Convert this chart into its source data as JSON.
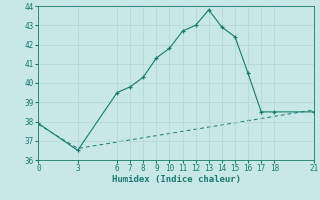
{
  "xlabel": "Humidex (Indice chaleur)",
  "line1_x": [
    0,
    3,
    6,
    7,
    8,
    9,
    10,
    11,
    12,
    13,
    14,
    15,
    16,
    17,
    18,
    21
  ],
  "line1_y": [
    37.9,
    36.5,
    39.5,
    39.8,
    40.3,
    41.3,
    41.8,
    42.7,
    43.0,
    43.8,
    42.9,
    42.4,
    40.5,
    38.5,
    38.5,
    38.5
  ],
  "line2_x": [
    0,
    3,
    21
  ],
  "line2_y": [
    37.85,
    36.6,
    38.6
  ],
  "line_color": "#1a7a6e",
  "bg_color": "#c8e8e8",
  "grid_color": "#b0d4d4",
  "ylim": [
    36,
    44
  ],
  "xlim": [
    0,
    21
  ],
  "yticks": [
    36,
    37,
    38,
    39,
    40,
    41,
    42,
    43,
    44
  ],
  "xticks": [
    0,
    3,
    6,
    7,
    8,
    9,
    10,
    11,
    12,
    13,
    14,
    15,
    16,
    17,
    18,
    21
  ],
  "tick_fontsize": 5.5,
  "label_fontsize": 6.5
}
